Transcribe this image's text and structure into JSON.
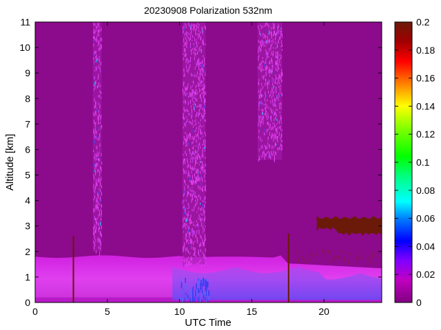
{
  "chart_data": {
    "type": "heatmap",
    "title": "20230908 Polarization 532nm",
    "xlabel": "UTC Time",
    "ylabel": "Altitude [km]",
    "xlim": [
      0,
      24
    ],
    "ylim": [
      0,
      11
    ],
    "x_ticks": [
      0,
      5,
      10,
      15,
      20
    ],
    "y_ticks": [
      0,
      1,
      2,
      3,
      4,
      5,
      6,
      7,
      8,
      9,
      10,
      11
    ],
    "grid": false,
    "colorbar": {
      "range": [
        0,
        0.2
      ],
      "ticks": [
        0,
        0.02,
        0.04,
        0.06,
        0.08,
        0.1,
        0.12,
        0.14,
        0.16,
        0.18,
        0.2
      ],
      "colormap": "hsv-reverse (purple-blue-cyan-green-yellow-orange-red-brown)"
    },
    "features": [
      {
        "kind": "background",
        "x": [
          0,
          24
        ],
        "y": [
          0,
          11
        ],
        "value": 0.01
      },
      {
        "kind": "noisy_column",
        "x": [
          4.0,
          4.6
        ],
        "y": [
          2.0,
          11
        ],
        "value": 0.02
      },
      {
        "kind": "noisy_column",
        "x": [
          10.2,
          11.8
        ],
        "y": [
          1.5,
          11
        ],
        "value": 0.02
      },
      {
        "kind": "noisy_column",
        "x": [
          15.4,
          17.1
        ],
        "y": [
          5.6,
          11
        ],
        "value": 0.02
      },
      {
        "kind": "boundary_layer",
        "x": [
          0,
          24
        ],
        "y": [
          0,
          1.8
        ],
        "value": 0.015
      },
      {
        "kind": "low_depol_region",
        "x": [
          9.5,
          24
        ],
        "y": [
          0.1,
          1.4
        ],
        "value": 0.035
      },
      {
        "kind": "aerosol_layer",
        "x": [
          19.5,
          24
        ],
        "y": [
          2.6,
          3.4
        ],
        "value": 0.2
      },
      {
        "kind": "spike",
        "x": [
          2.6,
          2.7
        ],
        "y": [
          0,
          2.6
        ],
        "value": 0.2
      },
      {
        "kind": "spike",
        "x": [
          17.5,
          17.6
        ],
        "y": [
          0,
          2.7
        ],
        "value": 0.2
      }
    ]
  }
}
